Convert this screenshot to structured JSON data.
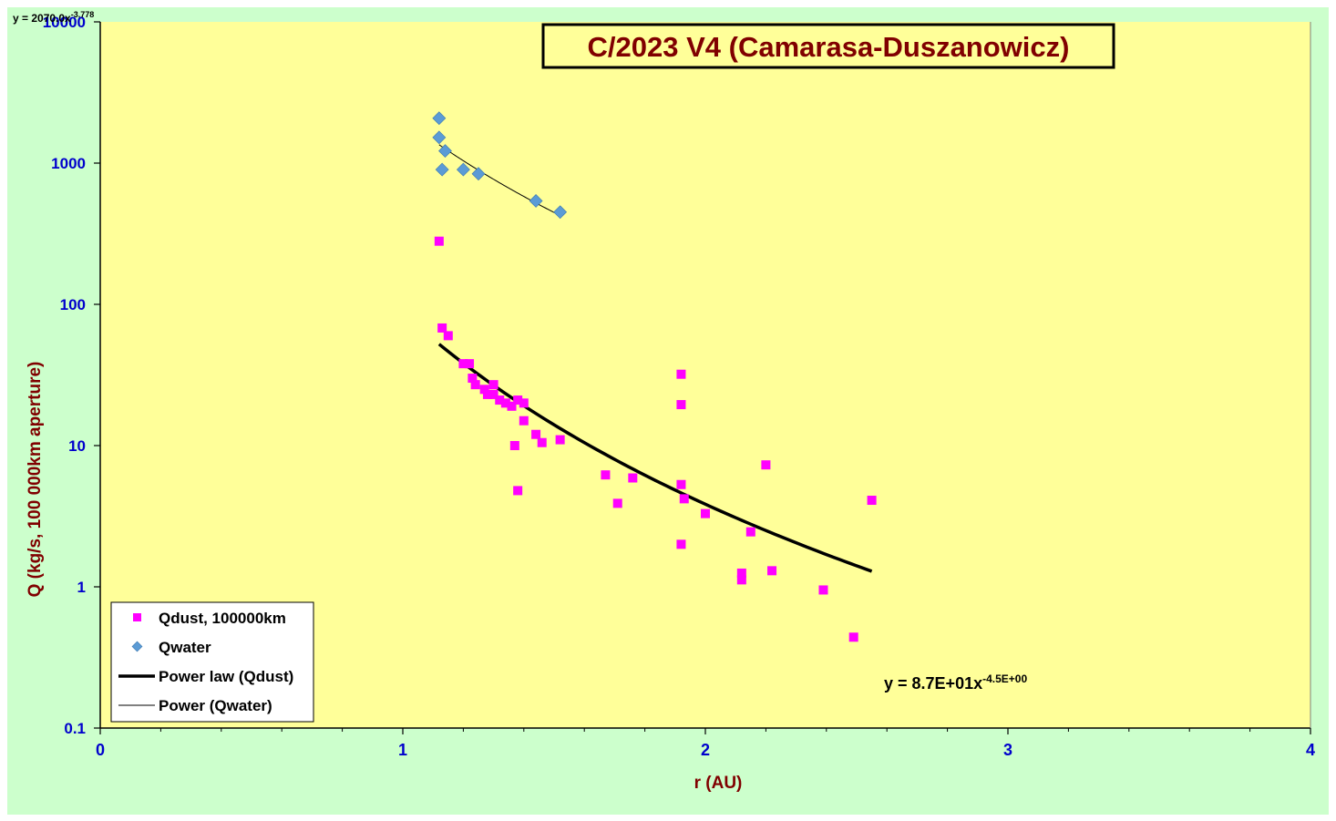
{
  "chart_data": {
    "type": "scatter",
    "title": "C/2023 V4 (Camarasa-Duszanowicz)",
    "xlabel": "r (AU)",
    "ylabel": "Q (kg/s, 100 000km aperture)",
    "xlim": [
      0,
      4
    ],
    "ylim": [
      0.1,
      10000
    ],
    "yscale": "log",
    "x_ticks": [
      "0",
      "1",
      "2",
      "3",
      "4"
    ],
    "y_ticks": [
      "0.1",
      "1",
      "10",
      "100",
      "1000",
      "10000"
    ],
    "grid": false,
    "legend_position": "bottom-left",
    "colors": {
      "outer_background": "#ccffcc",
      "plot_background": "#ffff99",
      "title_text": "#800000",
      "axis_label_text": "#800000",
      "tick_label_text": "#0000cc",
      "qdust": "#ff00ff",
      "qwater": "#5b9bd5",
      "fit_line": "#000000"
    },
    "series": [
      {
        "name": "Qdust, 100000km",
        "marker": "square",
        "points": [
          [
            1.12,
            280
          ],
          [
            1.13,
            68
          ],
          [
            1.15,
            60
          ],
          [
            1.2,
            38
          ],
          [
            1.22,
            38
          ],
          [
            1.23,
            30
          ],
          [
            1.24,
            27
          ],
          [
            1.27,
            25
          ],
          [
            1.28,
            23
          ],
          [
            1.3,
            27
          ],
          [
            1.3,
            23
          ],
          [
            1.32,
            21
          ],
          [
            1.34,
            20
          ],
          [
            1.36,
            19
          ],
          [
            1.37,
            10
          ],
          [
            1.38,
            21
          ],
          [
            1.38,
            4.8
          ],
          [
            1.4,
            20
          ],
          [
            1.4,
            15
          ],
          [
            1.44,
            12
          ],
          [
            1.46,
            10.5
          ],
          [
            1.52,
            11
          ],
          [
            1.67,
            6.2
          ],
          [
            1.71,
            3.9
          ],
          [
            1.76,
            5.9
          ],
          [
            1.92,
            32
          ],
          [
            1.92,
            19.5
          ],
          [
            1.92,
            5.3
          ],
          [
            1.93,
            4.2
          ],
          [
            1.92,
            2.0
          ],
          [
            2.0,
            3.3
          ],
          [
            2.12,
            1.25
          ],
          [
            2.12,
            1.12
          ],
          [
            2.15,
            2.45
          ],
          [
            2.2,
            7.3
          ],
          [
            2.22,
            1.3
          ],
          [
            2.39,
            0.95
          ],
          [
            2.49,
            0.44
          ],
          [
            2.55,
            4.1
          ]
        ]
      },
      {
        "name": "Qwater",
        "marker": "diamond",
        "points": [
          [
            1.12,
            2080
          ],
          [
            1.12,
            1520
          ],
          [
            1.13,
            900
          ],
          [
            1.14,
            1220
          ],
          [
            1.2,
            900
          ],
          [
            1.25,
            840
          ],
          [
            1.44,
            540
          ],
          [
            1.52,
            450
          ]
        ]
      }
    ],
    "fits": [
      {
        "name": "Power law (Qdust)",
        "coefficient": 87,
        "exponent": -4.5,
        "x_range": [
          1.12,
          2.55
        ],
        "equation_text": "y = 8.7E+01x",
        "equation_exponent_text": "-4.5E+00",
        "line_style": "thick"
      },
      {
        "name": "Power (Qwater)",
        "coefficient": 2070,
        "exponent": -3.778,
        "x_range": [
          1.12,
          1.52
        ],
        "equation_text": "y = 2070.0x",
        "equation_exponent_text": "-3.778",
        "line_style": "thin"
      }
    ],
    "legend_entries": [
      "Qdust, 100000km",
      "Qwater",
      "Power law (Qdust)",
      "Power (Qwater)"
    ]
  }
}
